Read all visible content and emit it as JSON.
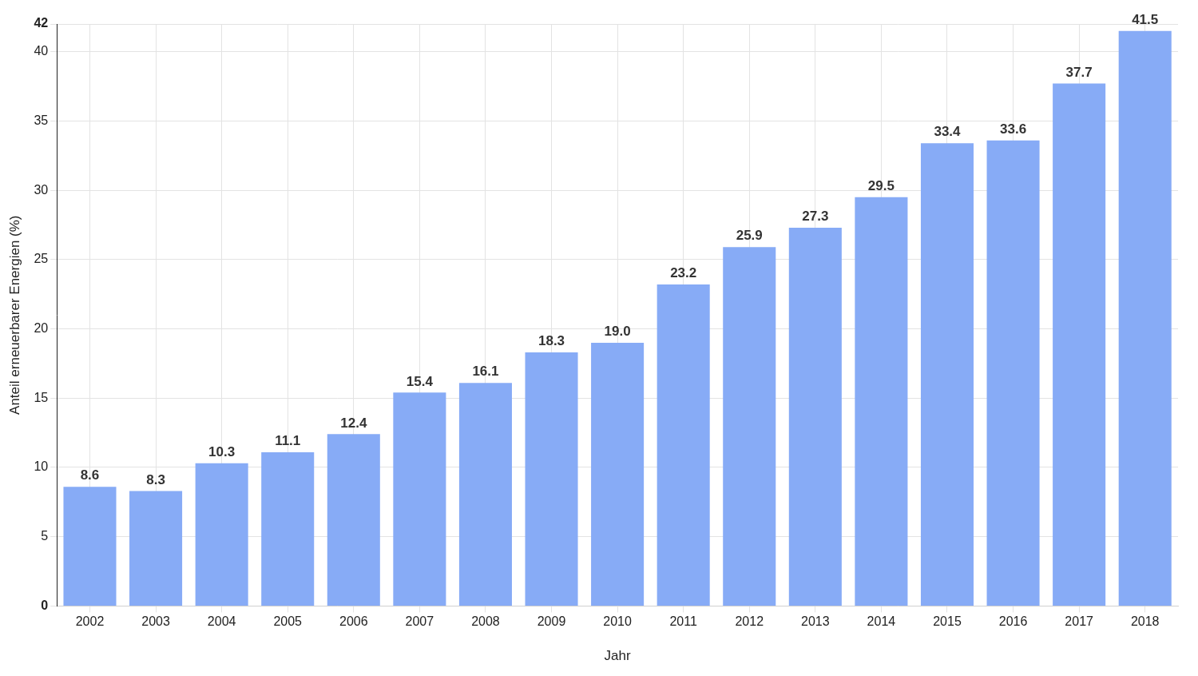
{
  "chart_data": {
    "type": "bar",
    "x_label": "Jahr",
    "y_label": "Anteil erneuerbarer Energien (%)",
    "categories": [
      "2002",
      "2003",
      "2004",
      "2005",
      "2006",
      "2007",
      "2008",
      "2009",
      "2010",
      "2011",
      "2012",
      "2013",
      "2014",
      "2015",
      "2016",
      "2017",
      "2018"
    ],
    "values": [
      8.6,
      8.3,
      10.3,
      11.1,
      12.4,
      15.4,
      16.1,
      18.3,
      19.0,
      23.2,
      25.9,
      27.3,
      29.5,
      33.4,
      33.6,
      37.7,
      41.5
    ],
    "value_labels": [
      "8.6",
      "8.3",
      "10.3",
      "11.1",
      "12.4",
      "15.4",
      "16.1",
      "18.3",
      "19.0",
      "23.2",
      "25.9",
      "27.3",
      "29.5",
      "33.4",
      "33.6",
      "37.7",
      "41.5"
    ],
    "color": "#87abf6",
    "ylim": [
      0,
      42
    ],
    "yticks": [
      0,
      5,
      10,
      15,
      20,
      25,
      30,
      35,
      40,
      42
    ],
    "grid": true,
    "data_labels": true
  }
}
